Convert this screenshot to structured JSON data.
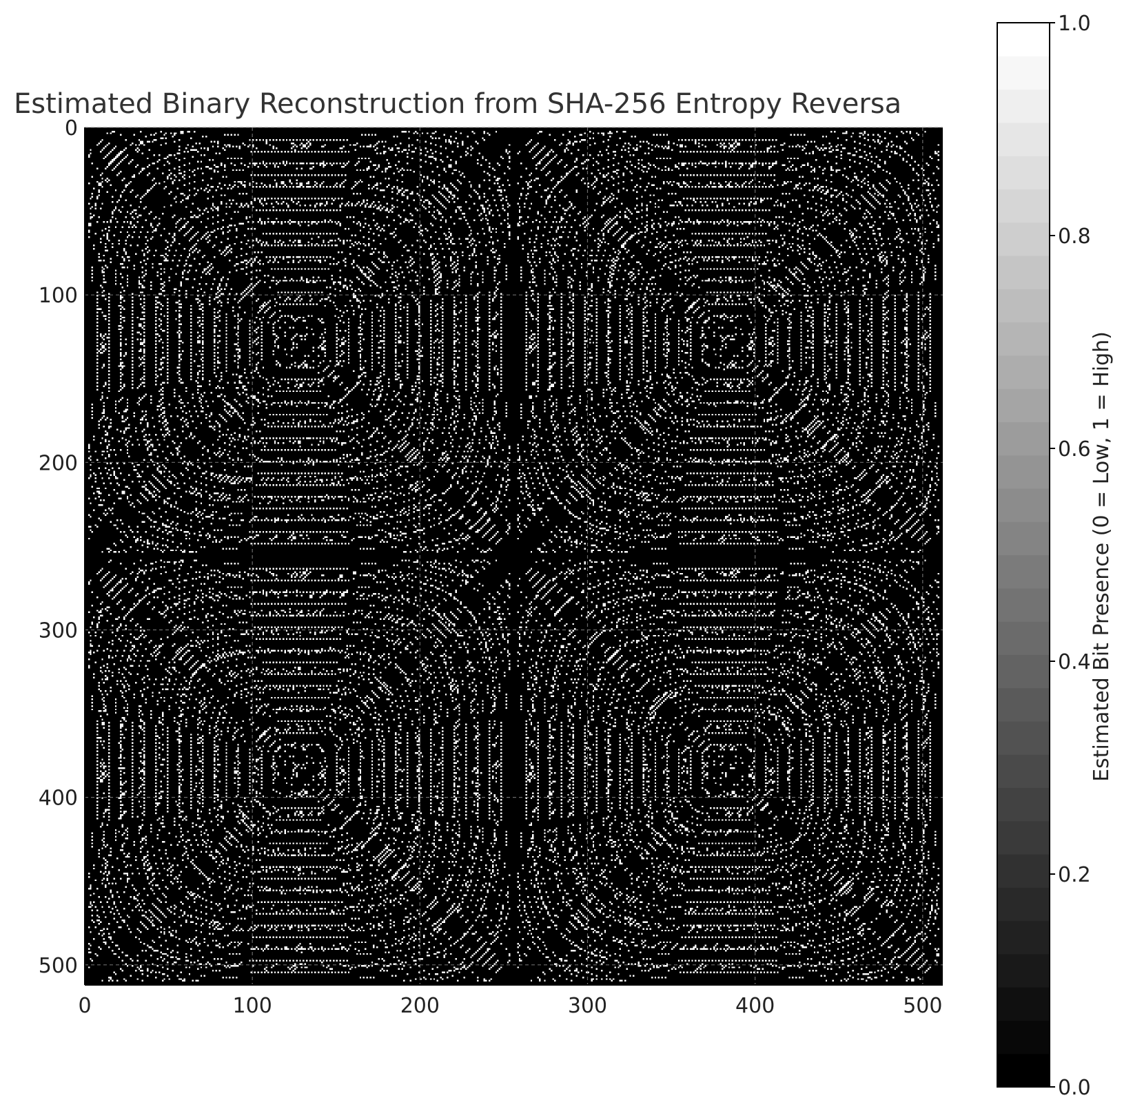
{
  "chart_data": {
    "type": "heatmap",
    "title": "Estimated Binary Reconstruction from SHA-256 Entropy Reversa",
    "xlabel": "",
    "ylabel": "",
    "xlim": [
      0,
      512
    ],
    "ylim": [
      512,
      0
    ],
    "x_ticks": [
      0,
      100,
      200,
      300,
      400,
      500
    ],
    "y_ticks": [
      0,
      100,
      200,
      300,
      400,
      500
    ],
    "grid": true,
    "colormap": "gray",
    "colormap_levels": 32,
    "color_range": [
      0,
      1
    ],
    "colorbar": {
      "label": "Estimated Bit Presence (0 = Low, 1 = High)",
      "ticks": [
        0.0,
        0.2,
        0.4,
        0.6,
        0.8,
        1.0
      ],
      "tick_labels": [
        "0.0",
        "0.2",
        "0.4",
        "0.6",
        "0.8",
        "1.0"
      ]
    },
    "grid_size": [
      512,
      512
    ],
    "tile_pattern": "2x2 repeated 256x256 blocks, each containing 2x2 mirrored 128x128 quadrants of concentric dotted interference arcs",
    "values": "binary (0 or 1) per cell"
  }
}
